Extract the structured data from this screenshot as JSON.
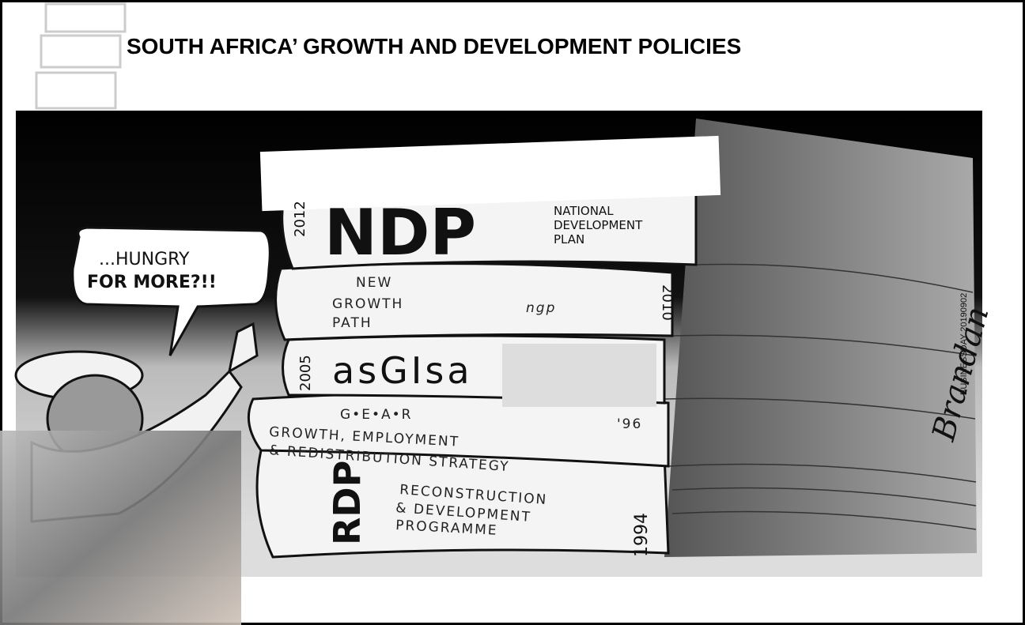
{
  "header": {
    "title": "SOUTH AFRICA’ GROWTH AND DEVELOPMENT POLICIES"
  },
  "cartoon": {
    "speech_bubble": [
      "...HUNGRY",
      "FOR MORE?!!"
    ],
    "books": [
      {
        "year": "2012",
        "acronym": "NDP",
        "name": [
          "NATIONAL",
          "DEVELOPMENT",
          "PLAN"
        ]
      },
      {
        "year": "2010",
        "acronym": "ngp",
        "name": [
          "NEW",
          "GROWTH",
          "PATH"
        ]
      },
      {
        "year": "2005",
        "acronym": "asGIsa"
      },
      {
        "year": "'96",
        "acronym": "G•E•A•R",
        "name": [
          "GROWTH, EMPLOYMENT",
          "& REDISTRIBUTION STRATEGY"
        ]
      },
      {
        "year": "1994",
        "acronym": "RDP",
        "name": [
          "RECONSTRUCTION",
          "& DEVELOPMENT",
          "PROGRAMME"
        ]
      }
    ],
    "signature": "Brandan",
    "credit": "BUSINESSDAY 20190902"
  }
}
